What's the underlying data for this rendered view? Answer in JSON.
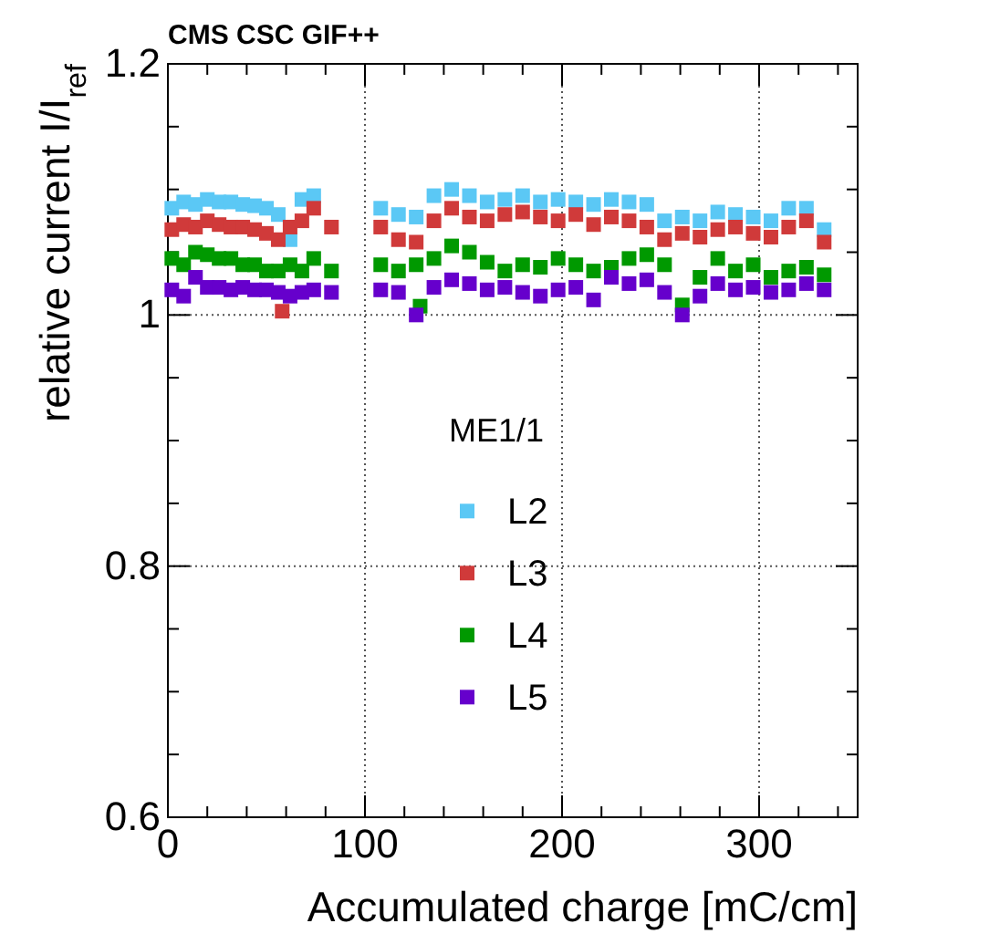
{
  "chart_data": {
    "type": "scatter",
    "title": "CMS CSC GIF++",
    "xlabel": "Accumulated charge [mC/cm]",
    "ylabel": "relative current I/I$_{ref}$",
    "legend_title": "ME1/1",
    "legend": "center",
    "grid": true,
    "marker": "square",
    "xlim": [
      0,
      350
    ],
    "xticks": [
      0,
      {
        "value": 20,
        "label": null
      },
      {
        "value": 40,
        "label": null
      },
      {
        "value": 60,
        "label": null
      },
      {
        "value": 80,
        "label": null
      },
      100,
      {
        "value": 120,
        "label": null
      },
      {
        "value": 140,
        "label": null
      },
      {
        "value": 160,
        "label": null
      },
      {
        "value": 180,
        "label": null
      },
      200,
      {
        "value": 220,
        "label": null
      },
      {
        "value": 240,
        "label": null
      },
      {
        "value": 260,
        "label": null
      },
      {
        "value": 280,
        "label": null
      },
      300,
      {
        "value": 320,
        "label": null
      },
      {
        "value": 340,
        "label": null
      }
    ],
    "ylim": [
      0.6,
      1.2
    ],
    "yticks": [
      {
        "value": 0.6,
        "label": "0.6"
      },
      {
        "value": 0.65,
        "label": null
      },
      {
        "value": 0.7,
        "label": null
      },
      {
        "value": 0.75,
        "label": null
      },
      {
        "value": 0.8,
        "label": "0.8"
      },
      {
        "value": 0.85,
        "label": null
      },
      {
        "value": 0.9,
        "label": null
      },
      {
        "value": 0.95,
        "label": null
      },
      {
        "value": 1,
        "label": "1"
      },
      {
        "value": 1.05,
        "label": null
      },
      {
        "value": 1.1,
        "label": null
      },
      {
        "value": 1.15,
        "label": null
      },
      {
        "value": 1.2,
        "label": "1.2"
      }
    ],
    "x": [
      2,
      8,
      14,
      20,
      26,
      32,
      38,
      44,
      50,
      56,
      62,
      68,
      74,
      108,
      117,
      126,
      135,
      144,
      153,
      162,
      171,
      180,
      189,
      198,
      207,
      216,
      225,
      234,
      243,
      252,
      261,
      270,
      279,
      288,
      297,
      306,
      315,
      324,
      333
    ],
    "series": [
      {
        "name": "L2",
        "color": "#5bc8f5",
        "values": [
          1.085,
          1.09,
          1.088,
          1.092,
          1.09,
          1.09,
          1.088,
          1.087,
          1.085,
          1.08,
          1.06,
          1.092,
          1.095,
          1.085,
          1.08,
          1.078,
          1.095,
          1.1,
          1.095,
          1.09,
          1.092,
          1.095,
          1.09,
          1.092,
          1.09,
          1.088,
          1.092,
          1.09,
          1.088,
          1.075,
          1.078,
          1.075,
          1.082,
          1.08,
          1.078,
          1.075,
          1.085,
          1.085,
          1.068
        ]
      },
      {
        "name": "L3",
        "color": "#d03a3a",
        "x": [
          2,
          8,
          14,
          20,
          26,
          32,
          38,
          44,
          50,
          56,
          58,
          62,
          68,
          74,
          83,
          108,
          117,
          126,
          135,
          144,
          153,
          162,
          171,
          180,
          189,
          198,
          207,
          216,
          225,
          234,
          243,
          252,
          261,
          270,
          279,
          288,
          297,
          306,
          315,
          324,
          333
        ],
        "values": [
          1.068,
          1.072,
          1.07,
          1.075,
          1.072,
          1.07,
          1.07,
          1.068,
          1.065,
          1.06,
          1.003,
          1.07,
          1.075,
          1.085,
          1.07,
          1.07,
          1.06,
          1.058,
          1.075,
          1.085,
          1.078,
          1.075,
          1.08,
          1.082,
          1.078,
          1.075,
          1.08,
          1.072,
          1.078,
          1.075,
          1.07,
          1.06,
          1.065,
          1.062,
          1.068,
          1.07,
          1.065,
          1.062,
          1.07,
          1.075,
          1.058
        ]
      },
      {
        "name": "L4",
        "color": "#009900",
        "x": [
          2,
          8,
          14,
          20,
          26,
          32,
          38,
          44,
          50,
          56,
          62,
          68,
          74,
          83,
          108,
          117,
          126,
          128,
          135,
          144,
          153,
          162,
          171,
          180,
          189,
          198,
          207,
          216,
          225,
          234,
          243,
          252,
          261,
          270,
          279,
          288,
          297,
          306,
          315,
          324,
          333
        ],
        "values": [
          1.045,
          1.04,
          1.05,
          1.048,
          1.045,
          1.045,
          1.04,
          1.04,
          1.035,
          1.035,
          1.04,
          1.035,
          1.045,
          1.035,
          1.04,
          1.035,
          1.04,
          1.007,
          1.045,
          1.055,
          1.05,
          1.042,
          1.035,
          1.04,
          1.038,
          1.045,
          1.04,
          1.035,
          1.038,
          1.045,
          1.048,
          1.04,
          1.008,
          1.03,
          1.045,
          1.035,
          1.04,
          1.03,
          1.035,
          1.038,
          1.032
        ]
      },
      {
        "name": "L5",
        "color": "#6600cc",
        "x": [
          2,
          8,
          14,
          20,
          26,
          32,
          38,
          44,
          50,
          56,
          62,
          68,
          74,
          83,
          108,
          117,
          126,
          135,
          144,
          153,
          162,
          171,
          180,
          189,
          198,
          207,
          216,
          225,
          234,
          243,
          252,
          261,
          270,
          279,
          288,
          297,
          306,
          315,
          324,
          333
        ],
        "values": [
          1.02,
          1.015,
          1.03,
          1.022,
          1.022,
          1.02,
          1.022,
          1.02,
          1.02,
          1.018,
          1.015,
          1.018,
          1.02,
          1.018,
          1.02,
          1.018,
          1.0,
          1.022,
          1.028,
          1.025,
          1.02,
          1.022,
          1.018,
          1.015,
          1.02,
          1.022,
          1.012,
          1.03,
          1.025,
          1.028,
          1.018,
          1.0,
          1.015,
          1.025,
          1.02,
          1.022,
          1.018,
          1.02,
          1.025,
          1.02
        ]
      }
    ]
  }
}
